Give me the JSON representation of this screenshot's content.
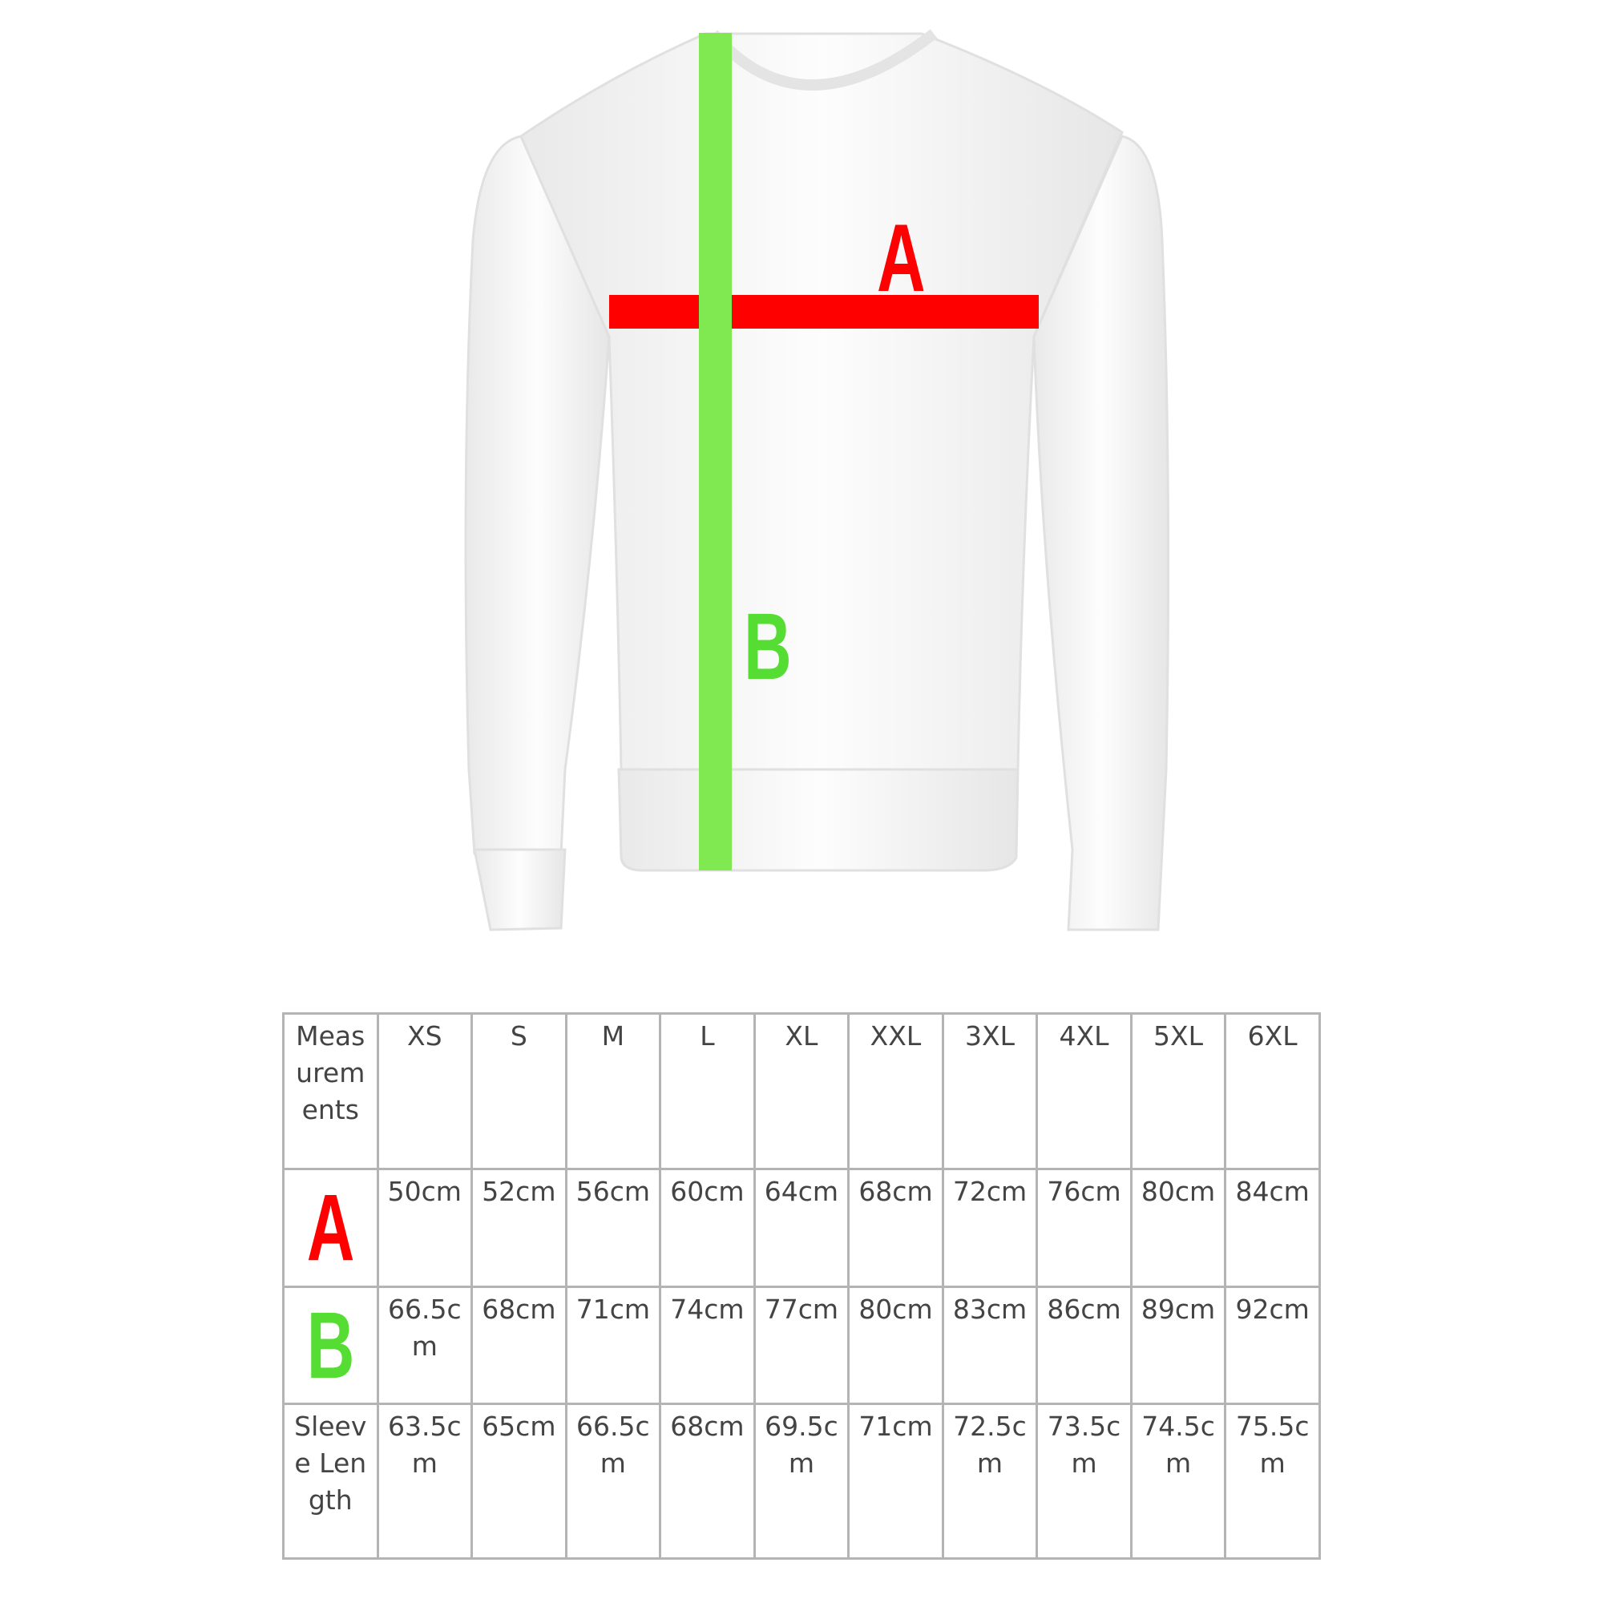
{
  "diagram": {
    "label_a": "A",
    "label_b": "B",
    "colors": {
      "a": "#ff0000",
      "b": "#55dd33",
      "garment": "#ffffff"
    }
  },
  "table": {
    "corner": "Measurements",
    "sizes": [
      "XS",
      "S",
      "M",
      "L",
      "XL",
      "XXL",
      "3XL",
      "4XL",
      "5XL",
      "6XL"
    ],
    "rows": [
      {
        "label": "A",
        "values": [
          "50cm",
          "52cm",
          "56cm",
          "60cm",
          "64cm",
          "68cm",
          "72cm",
          "76cm",
          "80cm",
          "84cm"
        ]
      },
      {
        "label": "B",
        "values": [
          "66.5cm",
          "68cm",
          "71cm",
          "74cm",
          "77cm",
          "80cm",
          "83cm",
          "86cm",
          "89cm",
          "92cm"
        ]
      },
      {
        "label": "Sleeve Length",
        "values": [
          "63.5cm",
          "65cm",
          "66.5cm",
          "68cm",
          "69.5cm",
          "71cm",
          "72.5cm",
          "73.5cm",
          "74.5cm",
          "75.5cm"
        ]
      }
    ]
  }
}
